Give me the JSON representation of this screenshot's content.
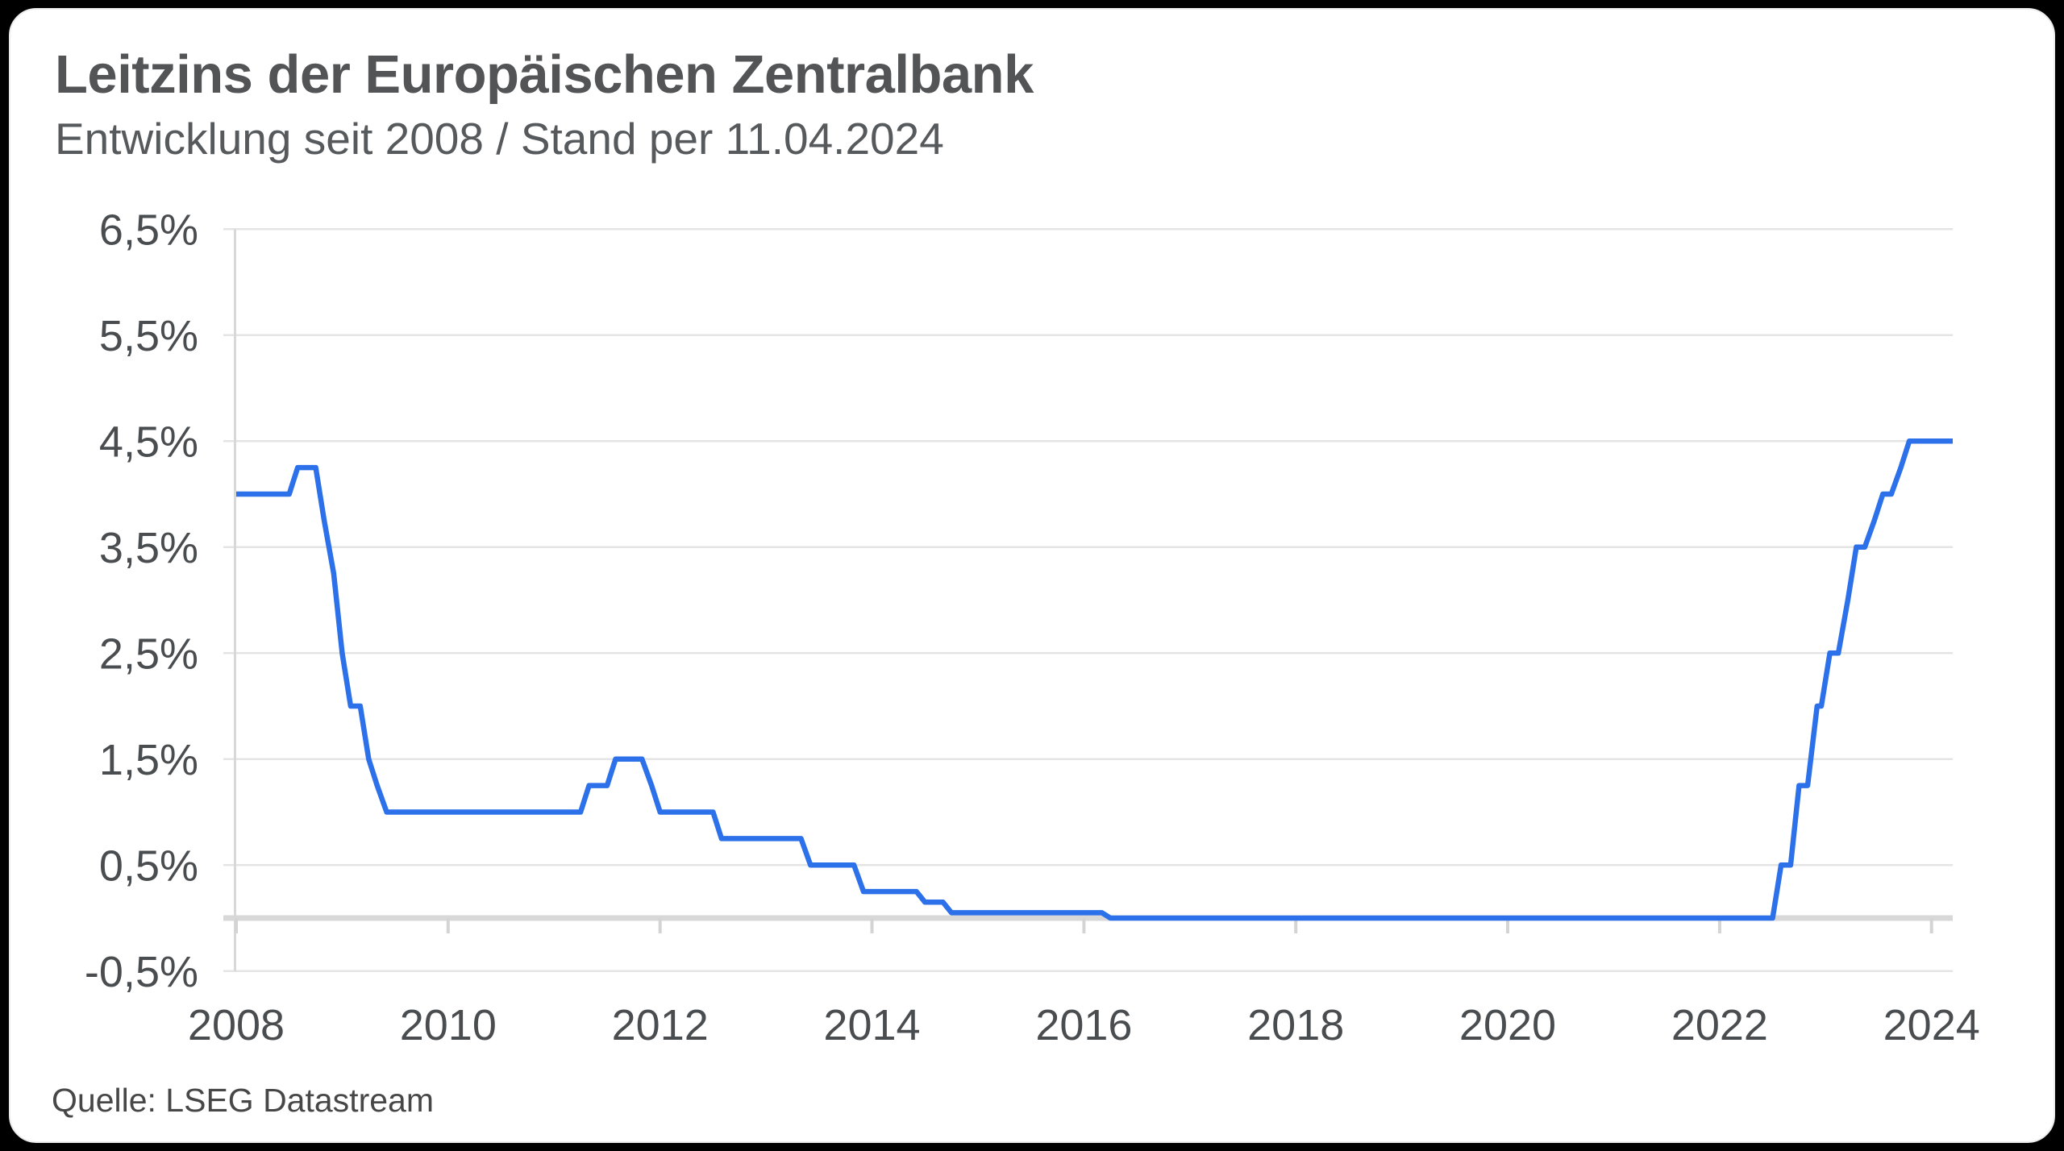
{
  "header": {
    "title": "Leitzins der Europäischen Zentralbank",
    "subtitle": "Entwicklung seit 2008 / Stand per 11.04.2024"
  },
  "footer": {
    "source": "Quelle: LSEG Datastream"
  },
  "colors": {
    "line": "#2c70ea",
    "card_background": "#ffffff",
    "page_background": "#000000",
    "text": "#4a4d4f"
  },
  "chart_data": {
    "type": "line",
    "title": "Leitzins der Europäischen Zentralbank",
    "subtitle": "Entwicklung seit 2008 / Stand per 11.04.2024",
    "source": "Quelle: LSEG Datastream",
    "unit": "%",
    "grid": true,
    "legend": false,
    "x_axis": {
      "range": [
        2008,
        2024.2
      ],
      "ticks": [
        2008,
        2010,
        2012,
        2014,
        2016,
        2018,
        2020,
        2022,
        2024
      ],
      "labels": [
        "2008",
        "2010",
        "2012",
        "2014",
        "2016",
        "2018",
        "2020",
        "2022",
        "2024"
      ]
    },
    "y_axis": {
      "range": [
        -0.5,
        6.5
      ],
      "ticks": [
        6.5,
        5.5,
        4.5,
        3.5,
        2.5,
        1.5,
        0.5,
        -0.5
      ],
      "labels": [
        "6,5%",
        "5,5%",
        "4,5%",
        "3,5%",
        "2,5%",
        "1,5%",
        "0,5%",
        "-0,5%"
      ],
      "zero_baseline": true
    },
    "series": [
      {
        "name": "Leitzins der Europäischen Zentralbank",
        "points": [
          [
            2008.0,
            4.0
          ],
          [
            2008.5,
            4.0
          ],
          [
            2008.58,
            4.25
          ],
          [
            2008.75,
            4.25
          ],
          [
            2008.83,
            3.75
          ],
          [
            2008.92,
            3.25
          ],
          [
            2009.0,
            2.5
          ],
          [
            2009.08,
            2.0
          ],
          [
            2009.17,
            2.0
          ],
          [
            2009.25,
            1.5
          ],
          [
            2009.33,
            1.25
          ],
          [
            2009.42,
            1.0
          ],
          [
            2011.25,
            1.0
          ],
          [
            2011.33,
            1.25
          ],
          [
            2011.5,
            1.25
          ],
          [
            2011.58,
            1.5
          ],
          [
            2011.83,
            1.5
          ],
          [
            2011.92,
            1.25
          ],
          [
            2012.0,
            1.0
          ],
          [
            2012.5,
            1.0
          ],
          [
            2012.58,
            0.75
          ],
          [
            2013.33,
            0.75
          ],
          [
            2013.42,
            0.5
          ],
          [
            2013.83,
            0.5
          ],
          [
            2013.92,
            0.25
          ],
          [
            2014.42,
            0.25
          ],
          [
            2014.5,
            0.15
          ],
          [
            2014.67,
            0.15
          ],
          [
            2014.75,
            0.05
          ],
          [
            2016.17,
            0.05
          ],
          [
            2016.25,
            0.0
          ],
          [
            2022.5,
            0.0
          ],
          [
            2022.58,
            0.5
          ],
          [
            2022.67,
            0.5
          ],
          [
            2022.75,
            1.25
          ],
          [
            2022.83,
            1.25
          ],
          [
            2022.92,
            2.0
          ],
          [
            2022.96,
            2.0
          ],
          [
            2023.04,
            2.5
          ],
          [
            2023.12,
            2.5
          ],
          [
            2023.21,
            3.0
          ],
          [
            2023.29,
            3.5
          ],
          [
            2023.37,
            3.5
          ],
          [
            2023.46,
            3.75
          ],
          [
            2023.54,
            4.0
          ],
          [
            2023.62,
            4.0
          ],
          [
            2023.71,
            4.25
          ],
          [
            2023.79,
            4.5
          ],
          [
            2024.2,
            4.5
          ]
        ]
      }
    ]
  }
}
